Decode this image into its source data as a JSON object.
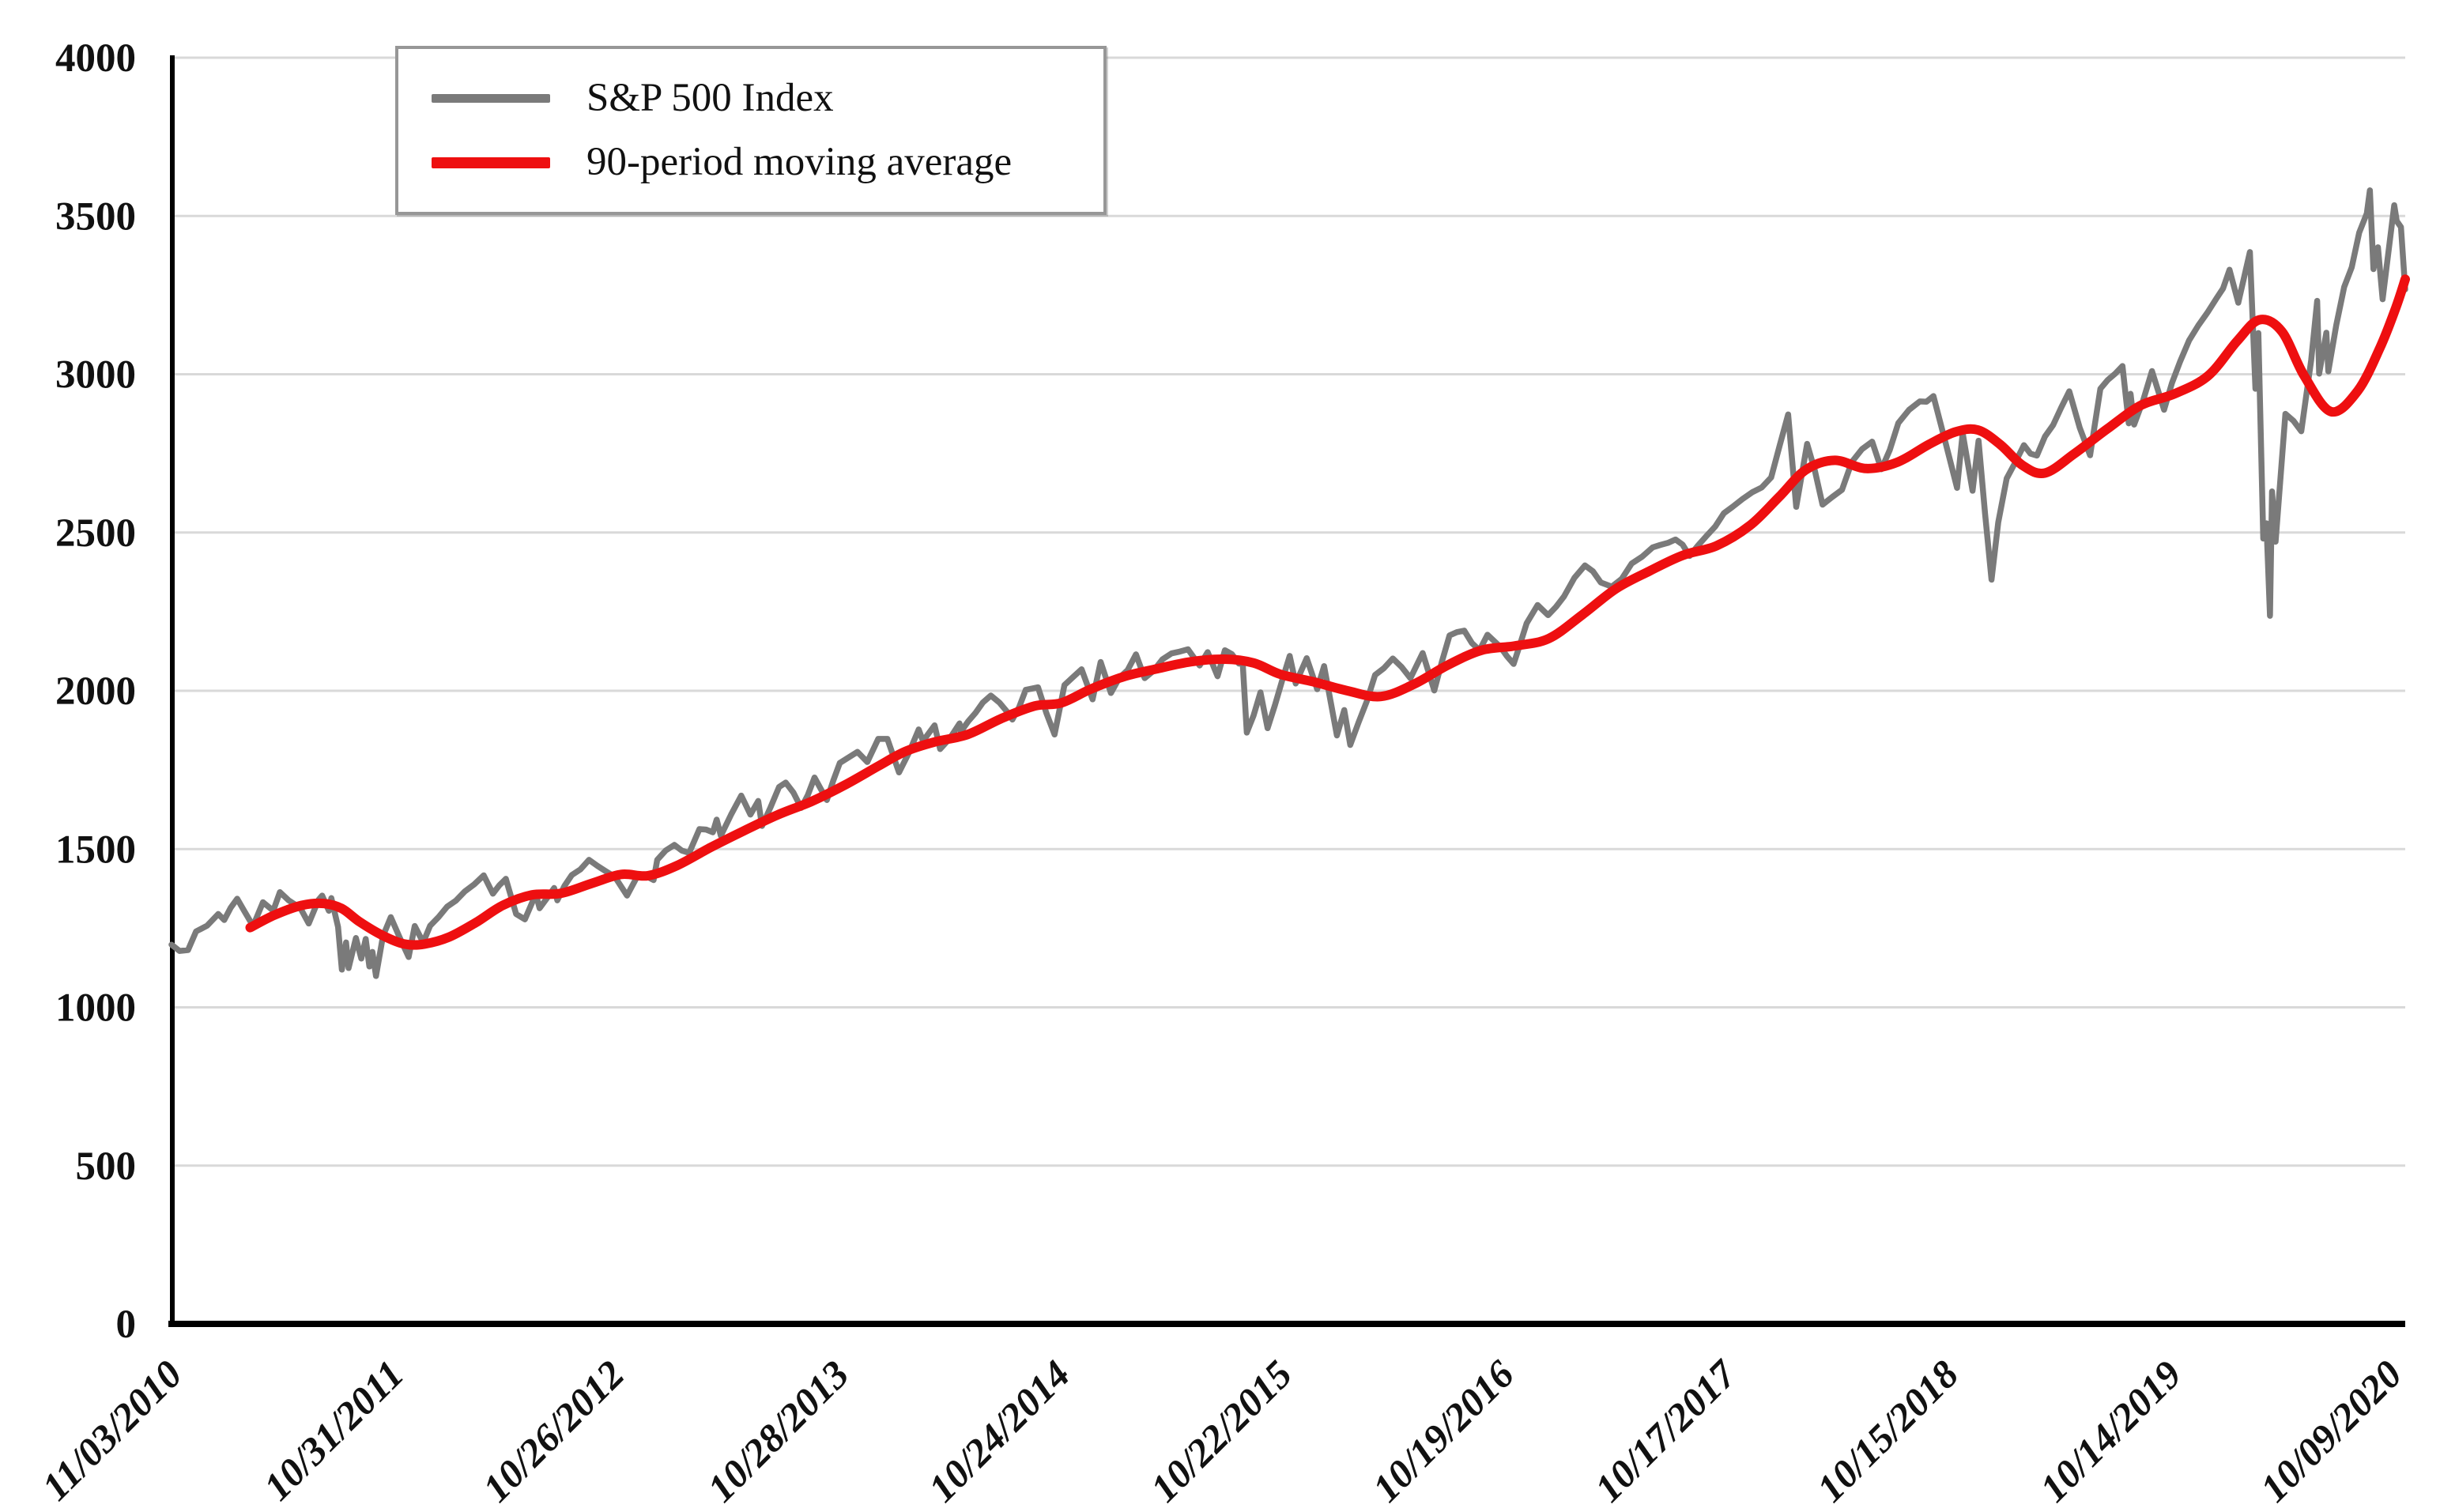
{
  "chart_data": {
    "type": "line",
    "title": "",
    "grid": true,
    "legend_position": "top-left",
    "colors": {
      "sp500_line": "#7a7a7a",
      "moving_average_line": "#ee0f10",
      "gridline": "#d9d9d9",
      "axis": "#000000",
      "text": "#111111"
    },
    "y_axis": {
      "min": 0,
      "max": 4000,
      "step": 500,
      "ticks": [
        0,
        500,
        1000,
        1500,
        2000,
        2500,
        3000,
        3500,
        4000
      ]
    },
    "x_axis": {
      "t_min": 2010.838,
      "t_max": 2020.832,
      "ticks": [
        {
          "label": "11/03/2010",
          "t": 2010.838
        },
        {
          "label": "10/31/2011",
          "t": 2011.83
        },
        {
          "label": "10/26/2012",
          "t": 2012.817
        },
        {
          "label": "10/28/2013",
          "t": 2013.822
        },
        {
          "label": "10/24/2014",
          "t": 2014.811
        },
        {
          "label": "10/22/2015",
          "t": 2015.805
        },
        {
          "label": "10/19/2016",
          "t": 2016.798
        },
        {
          "label": "10/17/2017",
          "t": 2017.792
        },
        {
          "label": "10/15/2018",
          "t": 2018.786
        },
        {
          "label": "10/14/2019",
          "t": 2019.784
        },
        {
          "label": "10/09/2020",
          "t": 2020.77
        }
      ]
    },
    "series": [
      {
        "name": "S&P 500 Index",
        "color": "#7a7a7a",
        "style": "jagged",
        "points": [
          [
            2010.838,
            1198
          ],
          [
            2010.874,
            1178
          ],
          [
            2010.912,
            1181
          ],
          [
            2010.948,
            1240
          ],
          [
            2010.997,
            1258
          ],
          [
            2011.047,
            1295
          ],
          [
            2011.074,
            1276
          ],
          [
            2011.132,
            1343
          ],
          [
            2011.162,
            1306
          ],
          [
            2011.203,
            1257
          ],
          [
            2011.247,
            1332
          ],
          [
            2011.293,
            1305
          ],
          [
            2011.323,
            1364
          ],
          [
            2011.362,
            1338
          ],
          [
            2011.414,
            1314
          ],
          [
            2011.452,
            1265
          ],
          [
            2011.496,
            1340
          ],
          [
            2011.512,
            1353
          ],
          [
            2011.542,
            1305
          ],
          [
            2011.553,
            1345
          ],
          [
            2011.583,
            1254
          ],
          [
            2011.6,
            1119
          ],
          [
            2011.619,
            1205
          ],
          [
            2011.63,
            1124
          ],
          [
            2011.663,
            1219
          ],
          [
            2011.687,
            1154
          ],
          [
            2011.707,
            1216
          ],
          [
            2011.723,
            1129
          ],
          [
            2011.737,
            1175
          ],
          [
            2011.753,
            1099
          ],
          [
            2011.784,
            1225
          ],
          [
            2011.819,
            1285
          ],
          [
            2011.899,
            1159
          ],
          [
            2011.926,
            1257
          ],
          [
            2011.964,
            1205
          ],
          [
            2011.995,
            1258
          ],
          [
            2012.071,
            1318
          ],
          [
            2012.15,
            1366
          ],
          [
            2012.235,
            1417
          ],
          [
            2012.276,
            1359
          ],
          [
            2012.334,
            1406
          ],
          [
            2012.38,
            1295
          ],
          [
            2012.419,
            1278
          ],
          [
            2012.468,
            1358
          ],
          [
            2012.485,
            1313
          ],
          [
            2012.55,
            1377
          ],
          [
            2012.564,
            1338
          ],
          [
            2012.629,
            1418
          ],
          [
            2012.706,
            1466
          ],
          [
            2012.783,
            1429
          ],
          [
            2012.822,
            1412
          ],
          [
            2012.876,
            1353
          ],
          [
            2012.926,
            1419
          ],
          [
            2012.995,
            1402
          ],
          [
            2013.011,
            1466
          ],
          [
            2013.088,
            1513
          ],
          [
            2013.154,
            1488
          ],
          [
            2013.2,
            1563
          ],
          [
            2013.26,
            1553
          ],
          [
            2013.277,
            1593
          ],
          [
            2013.296,
            1542
          ],
          [
            2013.387,
            1669
          ],
          [
            2013.428,
            1609
          ],
          [
            2013.463,
            1652
          ],
          [
            2013.48,
            1573
          ],
          [
            2013.556,
            1696
          ],
          [
            2013.586,
            1710
          ],
          [
            2013.655,
            1630
          ],
          [
            2013.715,
            1726
          ],
          [
            2013.77,
            1655
          ],
          [
            2013.828,
            1772
          ],
          [
            2013.871,
            1791
          ],
          [
            2013.907,
            1807
          ],
          [
            2013.951,
            1775
          ],
          [
            2014.0,
            1848
          ],
          [
            2014.041,
            1848
          ],
          [
            2014.093,
            1742
          ],
          [
            2014.181,
            1878
          ],
          [
            2014.2,
            1841
          ],
          [
            2014.252,
            1891
          ],
          [
            2014.277,
            1816
          ],
          [
            2014.364,
            1897
          ],
          [
            2014.37,
            1871
          ],
          [
            2014.468,
            1963
          ],
          [
            2014.504,
            1985
          ],
          [
            2014.581,
            1930
          ],
          [
            2014.6,
            1909
          ],
          [
            2014.66,
            2003
          ],
          [
            2014.715,
            2011
          ],
          [
            2014.789,
            1862
          ],
          [
            2014.833,
            2018
          ],
          [
            2014.91,
            2068
          ],
          [
            2014.959,
            1973
          ],
          [
            2014.995,
            2091
          ],
          [
            2015.041,
            1993
          ],
          [
            2015.153,
            2115
          ],
          [
            2015.192,
            2040
          ],
          [
            2015.312,
            2118
          ],
          [
            2015.386,
            2131
          ],
          [
            2015.438,
            2080
          ],
          [
            2015.474,
            2122
          ],
          [
            2015.518,
            2046
          ],
          [
            2015.551,
            2128
          ],
          [
            2015.614,
            2086
          ],
          [
            2015.63,
            2097
          ],
          [
            2015.649,
            1868
          ],
          [
            2015.71,
            1995
          ],
          [
            2015.742,
            1882
          ],
          [
            2015.841,
            2110
          ],
          [
            2015.868,
            2023
          ],
          [
            2015.917,
            2103
          ],
          [
            2015.964,
            2005
          ],
          [
            2015.995,
            2078
          ],
          [
            2016.052,
            1859
          ],
          [
            2016.085,
            1939
          ],
          [
            2016.112,
            1829
          ],
          [
            2016.223,
            2050
          ],
          [
            2016.302,
            2102
          ],
          [
            2016.381,
            2040
          ],
          [
            2016.436,
            2119
          ],
          [
            2016.488,
            2001
          ],
          [
            2016.556,
            2175
          ],
          [
            2016.622,
            2190
          ],
          [
            2016.69,
            2128
          ],
          [
            2016.726,
            2177
          ],
          [
            2016.783,
            2139
          ],
          [
            2016.843,
            2085
          ],
          [
            2016.901,
            2213
          ],
          [
            2016.95,
            2271
          ],
          [
            2016.997,
            2239
          ],
          [
            2017.068,
            2298
          ],
          [
            2017.162,
            2396
          ],
          [
            2017.233,
            2342
          ],
          [
            2017.282,
            2329
          ],
          [
            2017.371,
            2402
          ],
          [
            2017.465,
            2453
          ],
          [
            2017.567,
            2478
          ],
          [
            2017.63,
            2426
          ],
          [
            2017.745,
            2519
          ],
          [
            2017.822,
            2581
          ],
          [
            2017.91,
            2627
          ],
          [
            2017.995,
            2674
          ],
          [
            2018.071,
            2873
          ],
          [
            2018.107,
            2581
          ],
          [
            2018.156,
            2780
          ],
          [
            2018.225,
            2588
          ],
          [
            2018.312,
            2635
          ],
          [
            2018.356,
            2723
          ],
          [
            2018.447,
            2787
          ],
          [
            2018.488,
            2700
          ],
          [
            2018.564,
            2846
          ],
          [
            2018.66,
            2914
          ],
          [
            2018.721,
            2931
          ],
          [
            2018.775,
            2785
          ],
          [
            2018.827,
            2641
          ],
          [
            2018.852,
            2814
          ],
          [
            2018.896,
            2632
          ],
          [
            2018.923,
            2790
          ],
          [
            2018.981,
            2351
          ],
          [
            2019.011,
            2532
          ],
          [
            2019.049,
            2671
          ],
          [
            2019.126,
            2776
          ],
          [
            2019.184,
            2743
          ],
          [
            2019.329,
            2946
          ],
          [
            2019.422,
            2744
          ],
          [
            2019.468,
            2954
          ],
          [
            2019.567,
            3026
          ],
          [
            2019.595,
            2845
          ],
          [
            2019.603,
            2938
          ],
          [
            2019.619,
            2841
          ],
          [
            2019.699,
            3010
          ],
          [
            2019.753,
            2888
          ],
          [
            2019.824,
            3039
          ],
          [
            2019.906,
            3154
          ],
          [
            2019.988,
            3240
          ],
          [
            2020.046,
            3330
          ],
          [
            2020.085,
            3226
          ],
          [
            2020.137,
            3386
          ],
          [
            2020.162,
            2954
          ],
          [
            2020.175,
            3130
          ],
          [
            2020.197,
            2481
          ],
          [
            2020.211,
            2529
          ],
          [
            2020.227,
            2237
          ],
          [
            2020.236,
            2630
          ],
          [
            2020.252,
            2471
          ],
          [
            2020.296,
            2875
          ],
          [
            2020.367,
            2820
          ],
          [
            2020.411,
            3044
          ],
          [
            2020.438,
            3232
          ],
          [
            2020.447,
            3002
          ],
          [
            2020.479,
            3131
          ],
          [
            2020.488,
            3009
          ],
          [
            2020.559,
            3276
          ],
          [
            2020.66,
            3508
          ],
          [
            2020.674,
            3581
          ],
          [
            2020.69,
            3332
          ],
          [
            2020.71,
            3401
          ],
          [
            2020.731,
            3237
          ],
          [
            2020.783,
            3534
          ],
          [
            2020.794,
            3484
          ],
          [
            2020.813,
            3465
          ],
          [
            2020.832,
            3268
          ]
        ]
      },
      {
        "name": "90-period moving average",
        "color": "#ee0f10",
        "style": "smooth",
        "points": [
          [
            2011.19,
            1252
          ],
          [
            2011.3,
            1292
          ],
          [
            2011.42,
            1322
          ],
          [
            2011.52,
            1328
          ],
          [
            2011.6,
            1312
          ],
          [
            2011.68,
            1270
          ],
          [
            2011.78,
            1228
          ],
          [
            2011.88,
            1200
          ],
          [
            2011.97,
            1200
          ],
          [
            2012.08,
            1222
          ],
          [
            2012.2,
            1268
          ],
          [
            2012.32,
            1322
          ],
          [
            2012.45,
            1355
          ],
          [
            2012.58,
            1360
          ],
          [
            2012.72,
            1392
          ],
          [
            2012.85,
            1420
          ],
          [
            2012.97,
            1416
          ],
          [
            2013.1,
            1448
          ],
          [
            2013.25,
            1505
          ],
          [
            2013.4,
            1558
          ],
          [
            2013.55,
            1608
          ],
          [
            2013.7,
            1650
          ],
          [
            2013.85,
            1702
          ],
          [
            2014.0,
            1762
          ],
          [
            2014.12,
            1808
          ],
          [
            2014.25,
            1838
          ],
          [
            2014.4,
            1862
          ],
          [
            2014.55,
            1912
          ],
          [
            2014.7,
            1952
          ],
          [
            2014.82,
            1962
          ],
          [
            2014.95,
            2005
          ],
          [
            2015.1,
            2045
          ],
          [
            2015.25,
            2070
          ],
          [
            2015.4,
            2092
          ],
          [
            2015.55,
            2100
          ],
          [
            2015.68,
            2088
          ],
          [
            2015.8,
            2052
          ],
          [
            2015.95,
            2028
          ],
          [
            2016.1,
            2000
          ],
          [
            2016.25,
            1982
          ],
          [
            2016.4,
            2022
          ],
          [
            2016.55,
            2082
          ],
          [
            2016.7,
            2128
          ],
          [
            2016.85,
            2142
          ],
          [
            2017.0,
            2165
          ],
          [
            2017.15,
            2240
          ],
          [
            2017.3,
            2322
          ],
          [
            2017.45,
            2378
          ],
          [
            2017.6,
            2428
          ],
          [
            2017.75,
            2458
          ],
          [
            2017.9,
            2522
          ],
          [
            2018.03,
            2612
          ],
          [
            2018.15,
            2698
          ],
          [
            2018.28,
            2728
          ],
          [
            2018.42,
            2702
          ],
          [
            2018.56,
            2722
          ],
          [
            2018.7,
            2778
          ],
          [
            2018.82,
            2818
          ],
          [
            2018.92,
            2824
          ],
          [
            2019.02,
            2778
          ],
          [
            2019.12,
            2712
          ],
          [
            2019.22,
            2688
          ],
          [
            2019.35,
            2748
          ],
          [
            2019.5,
            2828
          ],
          [
            2019.65,
            2902
          ],
          [
            2019.8,
            2938
          ],
          [
            2019.95,
            2995
          ],
          [
            2020.08,
            3105
          ],
          [
            2020.18,
            3172
          ],
          [
            2020.28,
            3135
          ],
          [
            2020.38,
            2995
          ],
          [
            2020.5,
            2882
          ],
          [
            2020.62,
            2948
          ],
          [
            2020.72,
            3085
          ],
          [
            2020.79,
            3210
          ],
          [
            2020.832,
            3300
          ]
        ]
      }
    ]
  }
}
